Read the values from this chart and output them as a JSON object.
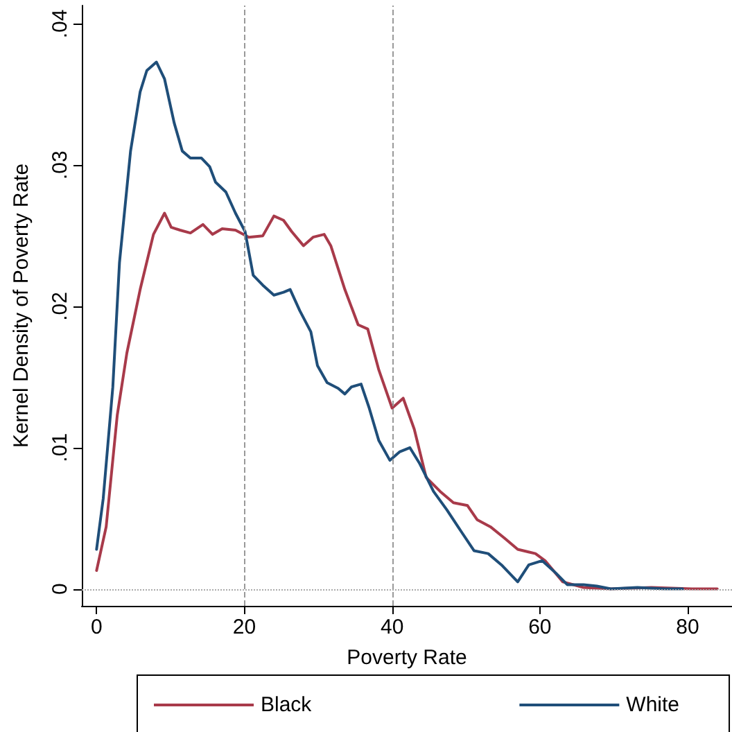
{
  "chart_data": {
    "type": "line",
    "xlabel": "Poverty Rate",
    "ylabel": "Kernel Density of Poverty Rate",
    "xlim": [
      -2,
      86
    ],
    "xticks": [
      0,
      20,
      40,
      60,
      80
    ],
    "ylim": [
      -0.0012,
      0.0413
    ],
    "yticks": [
      0,
      {
        "value": 0.01,
        "label": ".01"
      },
      {
        "value": 0.02,
        "label": ".02"
      },
      {
        "value": 0.03,
        "label": ".03"
      },
      {
        "value": 0.04,
        "label": ".04"
      }
    ],
    "grid": false,
    "legend": "bottom",
    "marker": "none",
    "line_style": "solid",
    "ref_lines": [
      {
        "axis": "x",
        "value": 20,
        "color": "#999999",
        "line_style": "dashed"
      },
      {
        "axis": "x",
        "value": 40,
        "color": "#999999",
        "line_style": "dashed"
      },
      {
        "axis": "y",
        "value": 0,
        "color": "#aaaaaa",
        "line_style": "dotted"
      }
    ],
    "series": [
      {
        "name": "Black",
        "color": "#a83a4a",
        "x": [
          0,
          1.3,
          2.8,
          4.1,
          5.9,
          7.7,
          9.2,
          10.1,
          11.3,
          12.7,
          14.4,
          15.7,
          17,
          18.8,
          20.6,
          22.5,
          24,
          25.3,
          26.4,
          28,
          29.3,
          30.8,
          31.7,
          33.6,
          35.4,
          36.7,
          38.2,
          40,
          41.5,
          43,
          44.6,
          46.5,
          48.3,
          50.2,
          51.5,
          53.3,
          55.2,
          57,
          59.4,
          60.7,
          63.1,
          65.9,
          69.6,
          75.1,
          80.6,
          84
        ],
        "values": [
          0.0013,
          0.0044,
          0.0123,
          0.0167,
          0.0212,
          0.0251,
          0.0266,
          0.0256,
          0.0254,
          0.0252,
          0.0258,
          0.0251,
          0.0255,
          0.0254,
          0.0249,
          0.025,
          0.0264,
          0.0261,
          0.0253,
          0.0243,
          0.0249,
          0.0251,
          0.0243,
          0.0212,
          0.0187,
          0.0184,
          0.0155,
          0.0128,
          0.0135,
          0.0113,
          0.0079,
          0.0069,
          0.0061,
          0.0059,
          0.0049,
          0.0044,
          0.0036,
          0.0028,
          0.0025,
          0.002,
          0.0005,
          0.0001,
          0,
          0.0001,
          0,
          0
        ]
      },
      {
        "name": "White",
        "color": "#1f4e79",
        "x": [
          0,
          0.9,
          2.2,
          3.1,
          4.6,
          5.9,
          6.8,
          8.1,
          9.2,
          10.5,
          11.6,
          12.7,
          14.2,
          15.3,
          16.1,
          17.5,
          18.8,
          20.1,
          21.2,
          22.5,
          24,
          25.3,
          26.2,
          27.5,
          29,
          29.9,
          31.2,
          32.7,
          33.6,
          34.5,
          35.8,
          36.9,
          38.2,
          39.7,
          41,
          42.4,
          43.7,
          45.6,
          47.4,
          49.3,
          51.1,
          53,
          54.8,
          57,
          58.5,
          60.3,
          62.2,
          63.7,
          65.9,
          67.7,
          69.6,
          73.2,
          76.9,
          79.3
        ],
        "values": [
          0.0028,
          0.0064,
          0.0143,
          0.0231,
          0.031,
          0.0352,
          0.0367,
          0.0373,
          0.0361,
          0.033,
          0.031,
          0.0305,
          0.0305,
          0.0299,
          0.0288,
          0.0281,
          0.0266,
          0.0253,
          0.0222,
          0.0215,
          0.0208,
          0.021,
          0.0212,
          0.0197,
          0.0182,
          0.0158,
          0.0146,
          0.0142,
          0.0138,
          0.0143,
          0.0145,
          0.0128,
          0.0105,
          0.0091,
          0.0097,
          0.01,
          0.0089,
          0.0069,
          0.0056,
          0.0041,
          0.0027,
          0.0025,
          0.0017,
          0.0005,
          0.0017,
          0.002,
          0.0011,
          0.0003,
          0.0003,
          0.0002,
          0,
          0.0001,
          0,
          0
        ]
      }
    ]
  }
}
